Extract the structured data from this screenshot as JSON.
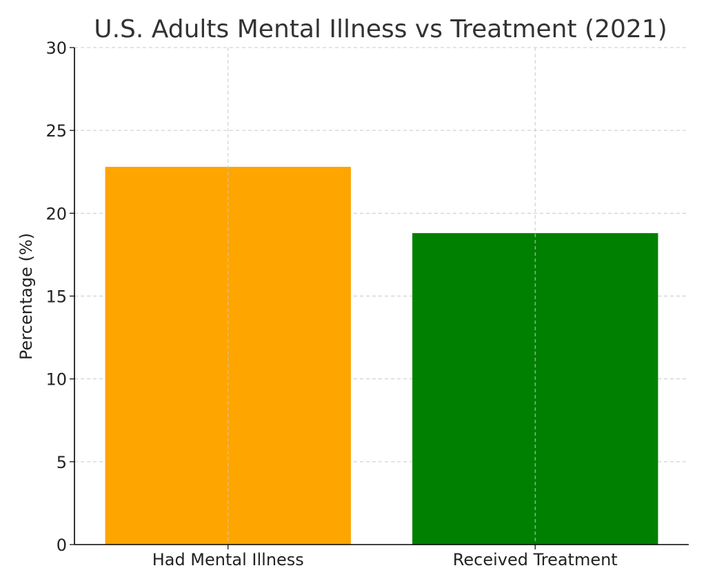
{
  "chart_data": {
    "type": "bar",
    "title": "U.S. Adults Mental Illness vs Treatment (2021)",
    "xlabel": "",
    "ylabel": "Percentage (%)",
    "categories": [
      "Had Mental Illness",
      "Received Treatment"
    ],
    "values": [
      22.8,
      18.8
    ],
    "colors": [
      "#FFA500",
      "#008000"
    ],
    "ylim": [
      0,
      30
    ],
    "yticks": [
      "0",
      "5",
      "10",
      "15",
      "20",
      "25",
      "30"
    ],
    "grid": true
  }
}
